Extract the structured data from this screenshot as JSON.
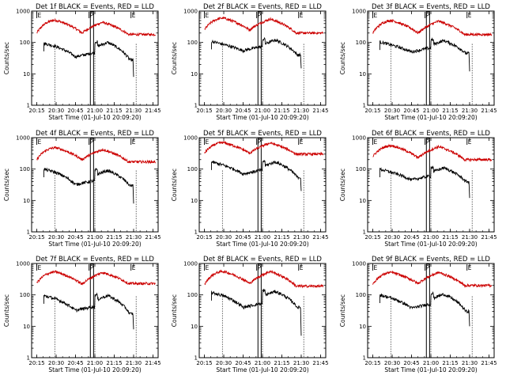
{
  "chart_data": {
    "type": "line",
    "layout": "3x3 grid",
    "scale_y": "log",
    "ylim": [
      1,
      1000
    ],
    "y_ticks": [
      "1",
      "10",
      "100",
      "1000"
    ],
    "ylabel": "Counts/sec",
    "x_ticks": [
      "20:15",
      "20:30",
      "20:45",
      "21:00",
      "21:15",
      "21:30",
      "21:45"
    ],
    "x_tick_minutes": [
      15,
      30,
      45,
      60,
      75,
      90,
      105
    ],
    "xlim_minutes": [
      11,
      109
    ],
    "xlabel": "Start Time (01-Jul-10 20:09:20)",
    "series_names": [
      "Events",
      "LLD"
    ],
    "series_colors": {
      "Events": "#000000",
      "LLD": "#cc0000"
    },
    "markers": [
      {
        "label": "E",
        "time_minutes": 15
      },
      {
        "label": "P",
        "time_minutes": 55.5
      },
      {
        "label": "E",
        "time_minutes": 88
      }
    ],
    "dotted_lines_minutes": [
      29,
      60,
      92
    ],
    "gap_box_minutes": [
      56.5,
      59
    ],
    "panels": [
      {
        "title": "Det 1f BLACK = Events, RED = LLD",
        "lld": {
          "start": 200,
          "peak1": 510,
          "trough": 200,
          "peak2": 440,
          "end": 180
        },
        "events": {
          "start": 95,
          "trough": 35,
          "peak2": 100,
          "end": 28,
          "dip": 8
        }
      },
      {
        "title": "Det 2f BLACK = Events, RED = LLD",
        "lld": {
          "start": 250,
          "peak1": 600,
          "trough": 250,
          "peak2": 560,
          "end": 200
        },
        "events": {
          "start": 110,
          "trough": 55,
          "peak2": 120,
          "end": 40,
          "dip": 15
        }
      },
      {
        "title": "Det 3f BLACK = Events, RED = LLD",
        "lld": {
          "start": 200,
          "peak1": 500,
          "trough": 200,
          "peak2": 480,
          "end": 180
        },
        "events": {
          "start": 105,
          "trough": 50,
          "peak2": 115,
          "end": 45,
          "dip": 12
        }
      },
      {
        "title": "Det 4f BLACK = Events, RED = LLD",
        "lld": {
          "start": 200,
          "peak1": 480,
          "trough": 200,
          "peak2": 420,
          "end": 170
        },
        "events": {
          "start": 100,
          "trough": 32,
          "peak2": 90,
          "end": 30,
          "dip": 8
        }
      },
      {
        "title": "Det 5f BLACK = Events, RED = LLD",
        "lld": {
          "start": 320,
          "peak1": 700,
          "trough": 320,
          "peak2": 680,
          "end": 300
        },
        "events": {
          "start": 170,
          "trough": 70,
          "peak2": 170,
          "end": 55,
          "dip": 20
        }
      },
      {
        "title": "Det 6f BLACK = Events, RED = LLD",
        "lld": {
          "start": 250,
          "peak1": 560,
          "trough": 230,
          "peak2": 520,
          "end": 200
        },
        "events": {
          "start": 100,
          "trough": 45,
          "peak2": 110,
          "end": 40,
          "dip": 12
        }
      },
      {
        "title": "Det 7f BLACK = Events, RED = LLD",
        "lld": {
          "start": 240,
          "peak1": 540,
          "trough": 220,
          "peak2": 520,
          "end": 230
        },
        "events": {
          "start": 95,
          "trough": 32,
          "peak2": 95,
          "end": 25,
          "dip": 8
        }
      },
      {
        "title": "Det 8f BLACK = Events, RED = LLD",
        "lld": {
          "start": 210,
          "peak1": 560,
          "trough": 230,
          "peak2": 560,
          "end": 190
        },
        "events": {
          "start": 120,
          "trough": 40,
          "peak2": 130,
          "end": 40,
          "dip": 5
        }
      },
      {
        "title": "Det 9f BLACK = Events, RED = LLD",
        "lld": {
          "start": 220,
          "peak1": 520,
          "trough": 230,
          "peak2": 520,
          "end": 200
        },
        "events": {
          "start": 100,
          "trough": 38,
          "peak2": 105,
          "end": 30,
          "dip": 10
        }
      }
    ]
  }
}
